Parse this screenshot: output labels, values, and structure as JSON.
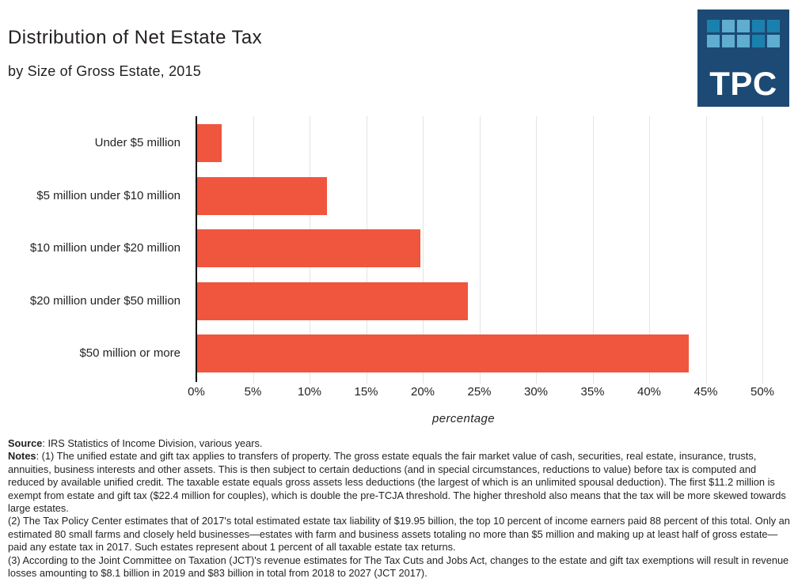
{
  "header": {
    "title": "Distribution of Net Estate Tax",
    "subtitle": "by Size of Gross Estate, 2015"
  },
  "logo": {
    "text": "TPC",
    "bg_color": "#1d4a74",
    "square_colors": {
      "dark": "#1a81ae",
      "light": "#5fadd0"
    },
    "squares": [
      [
        "dark",
        "light",
        "light",
        "dark",
        "dark"
      ],
      [
        "light",
        "light",
        "light",
        "dark",
        "light"
      ]
    ]
  },
  "chart_data": {
    "type": "bar",
    "orientation": "horizontal",
    "title": "Distribution of Net Estate Tax by Size of Gross Estate, 2015",
    "categories": [
      "Under $5 million",
      "$5 million under $10 million",
      "$10 million under $20 million",
      "$20 million under $50 million",
      "$50 million or more"
    ],
    "values": [
      2.2,
      11.5,
      19.7,
      23.9,
      43.4
    ],
    "xlabel": "percentage",
    "ylabel": "",
    "xlim": [
      0,
      50
    ],
    "x_ticks": [
      "0%",
      "5%",
      "10%",
      "15%",
      "20%",
      "25%",
      "30%",
      "35%",
      "40%",
      "45%",
      "50%"
    ],
    "bar_color": "#f0553e",
    "grid": true,
    "legend": "none"
  },
  "footer": {
    "source_label": "Source",
    "source_text": ": IRS Statistics of Income Division, various years.",
    "notes_label": "Notes",
    "note1": ": (1) The unified estate and gift tax applies to transfers of property. The gross estate equals the fair market value of cash, securities, real estate, insurance, trusts, annuities, business interests and other assets. This is then subject to certain deductions (and in special circumstances, reductions to value) before tax is computed and reduced by available unified credit. The taxable estate equals gross assets less deductions (the largest of which is an unlimited spousal deduction). The first $11.2 million is exempt from estate and gift tax ($22.4 million for couples), which is double the pre-TCJA threshold. The higher threshold also means that the tax will be more skewed towards large estates.",
    "note2": "(2) The Tax Policy Center estimates that of 2017's total estimated estate tax liability of $19.95 billion, the top 10 percent of income earners paid 88 percent of this total. Only an estimated 80 small farms and closely held businesses—estates with farm and business assets totaling no more than $5 million and making up at least half of gross estate—paid any estate tax in 2017. Such estates represent about 1 percent of all taxable estate tax returns.",
    "note3": "(3) According to the Joint Committee on Taxation (JCT)'s revenue estimates for The Tax Cuts and Jobs Act, changes to the estate and gift tax exemptions will result in revenue losses amounting to $8.1 billion in 2019 and $83 billion in total from 2018 to 2027 (JCT 2017)."
  }
}
